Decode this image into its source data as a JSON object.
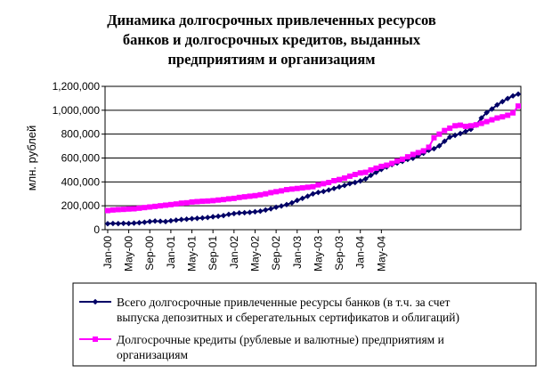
{
  "chart_data": {
    "type": "line",
    "title_lines": [
      "Динамика долгосрочных привлеченных ресурсов",
      "банков и долгосрочных кредитов, выданных",
      "предприятиям и организациям"
    ],
    "ylabel": "млн. рублей",
    "xlabel": "",
    "ylim": [
      0,
      1200000
    ],
    "yticks": [
      0,
      200000,
      400000,
      600000,
      800000,
      1000000,
      1200000
    ],
    "ytick_labels": [
      "0",
      "200,000",
      "400,000",
      "600,000",
      "800,000",
      "1,000,000",
      "1,200,000"
    ],
    "xtick_labels": [
      "Jan-00",
      "May-00",
      "Sep-00",
      "Jan-01",
      "May-01",
      "Sep-01",
      "Jan-02",
      "May-02",
      "Sep-02",
      "Jan-03",
      "May-03",
      "Sep-03",
      "Jan-04",
      "May-04"
    ],
    "x_start": "Jan-00",
    "x_step": "month",
    "grid": {
      "horizontal": true,
      "vertical": false
    },
    "legend_position": "bottom",
    "series": [
      {
        "name": "Всего долгосрочные привлеченные ресурсы банков (в т.ч. за счет выпуска депозитных и сберегательных сертификатов и облигаций)",
        "name_lines": [
          "Всего долгосрочные привлеченные ресурсы банков (в т.ч. за счет",
          "выпуска депозитных и сберегательных сертификатов и облигаций)"
        ],
        "color": "#000066",
        "marker": "diamond",
        "values": [
          50000,
          52000,
          51000,
          53000,
          52000,
          55000,
          58000,
          62000,
          68000,
          72000,
          70000,
          68000,
          75000,
          80000,
          85000,
          88000,
          92000,
          95000,
          98000,
          102000,
          108000,
          112000,
          118000,
          128000,
          135000,
          140000,
          142000,
          145000,
          150000,
          155000,
          165000,
          175000,
          188000,
          198000,
          210000,
          225000,
          245000,
          262000,
          280000,
          300000,
          312000,
          320000,
          332000,
          345000,
          358000,
          370000,
          385000,
          395000,
          408000,
          425000,
          455000,
          480000,
          505000,
          525000,
          545000,
          558000,
          572000,
          588000,
          598000,
          620000,
          640000,
          665000,
          678000,
          702000,
          740000,
          775000,
          790000,
          805000,
          822000,
          840000,
          875000,
          935000,
          980000,
          1010000,
          1045000,
          1072000,
          1098000,
          1120000,
          1135000
        ]
      },
      {
        "name": "Долгосрочные кредиты (рублевые и валютные) предприятиям и организациям",
        "name_lines": [
          "Долгосрочные кредиты (рублевые и валютные) предприятиям и",
          "организациям"
        ],
        "color": "#ff00ff",
        "marker": "square",
        "values": [
          160000,
          165000,
          168000,
          170000,
          173000,
          175000,
          180000,
          185000,
          190000,
          195000,
          200000,
          205000,
          210000,
          215000,
          222000,
          225000,
          232000,
          235000,
          238000,
          240000,
          243000,
          248000,
          252000,
          258000,
          262000,
          270000,
          275000,
          280000,
          285000,
          292000,
          300000,
          310000,
          318000,
          325000,
          335000,
          340000,
          345000,
          350000,
          355000,
          360000,
          375000,
          385000,
          395000,
          410000,
          420000,
          432000,
          448000,
          462000,
          475000,
          480000,
          500000,
          515000,
          530000,
          540000,
          555000,
          575000,
          590000,
          610000,
          630000,
          645000,
          660000,
          690000,
          770000,
          800000,
          830000,
          850000,
          870000,
          875000,
          865000,
          870000,
          878000,
          890000,
          905000,
          920000,
          935000,
          945000,
          958000,
          978000,
          1035000
        ]
      }
    ]
  }
}
